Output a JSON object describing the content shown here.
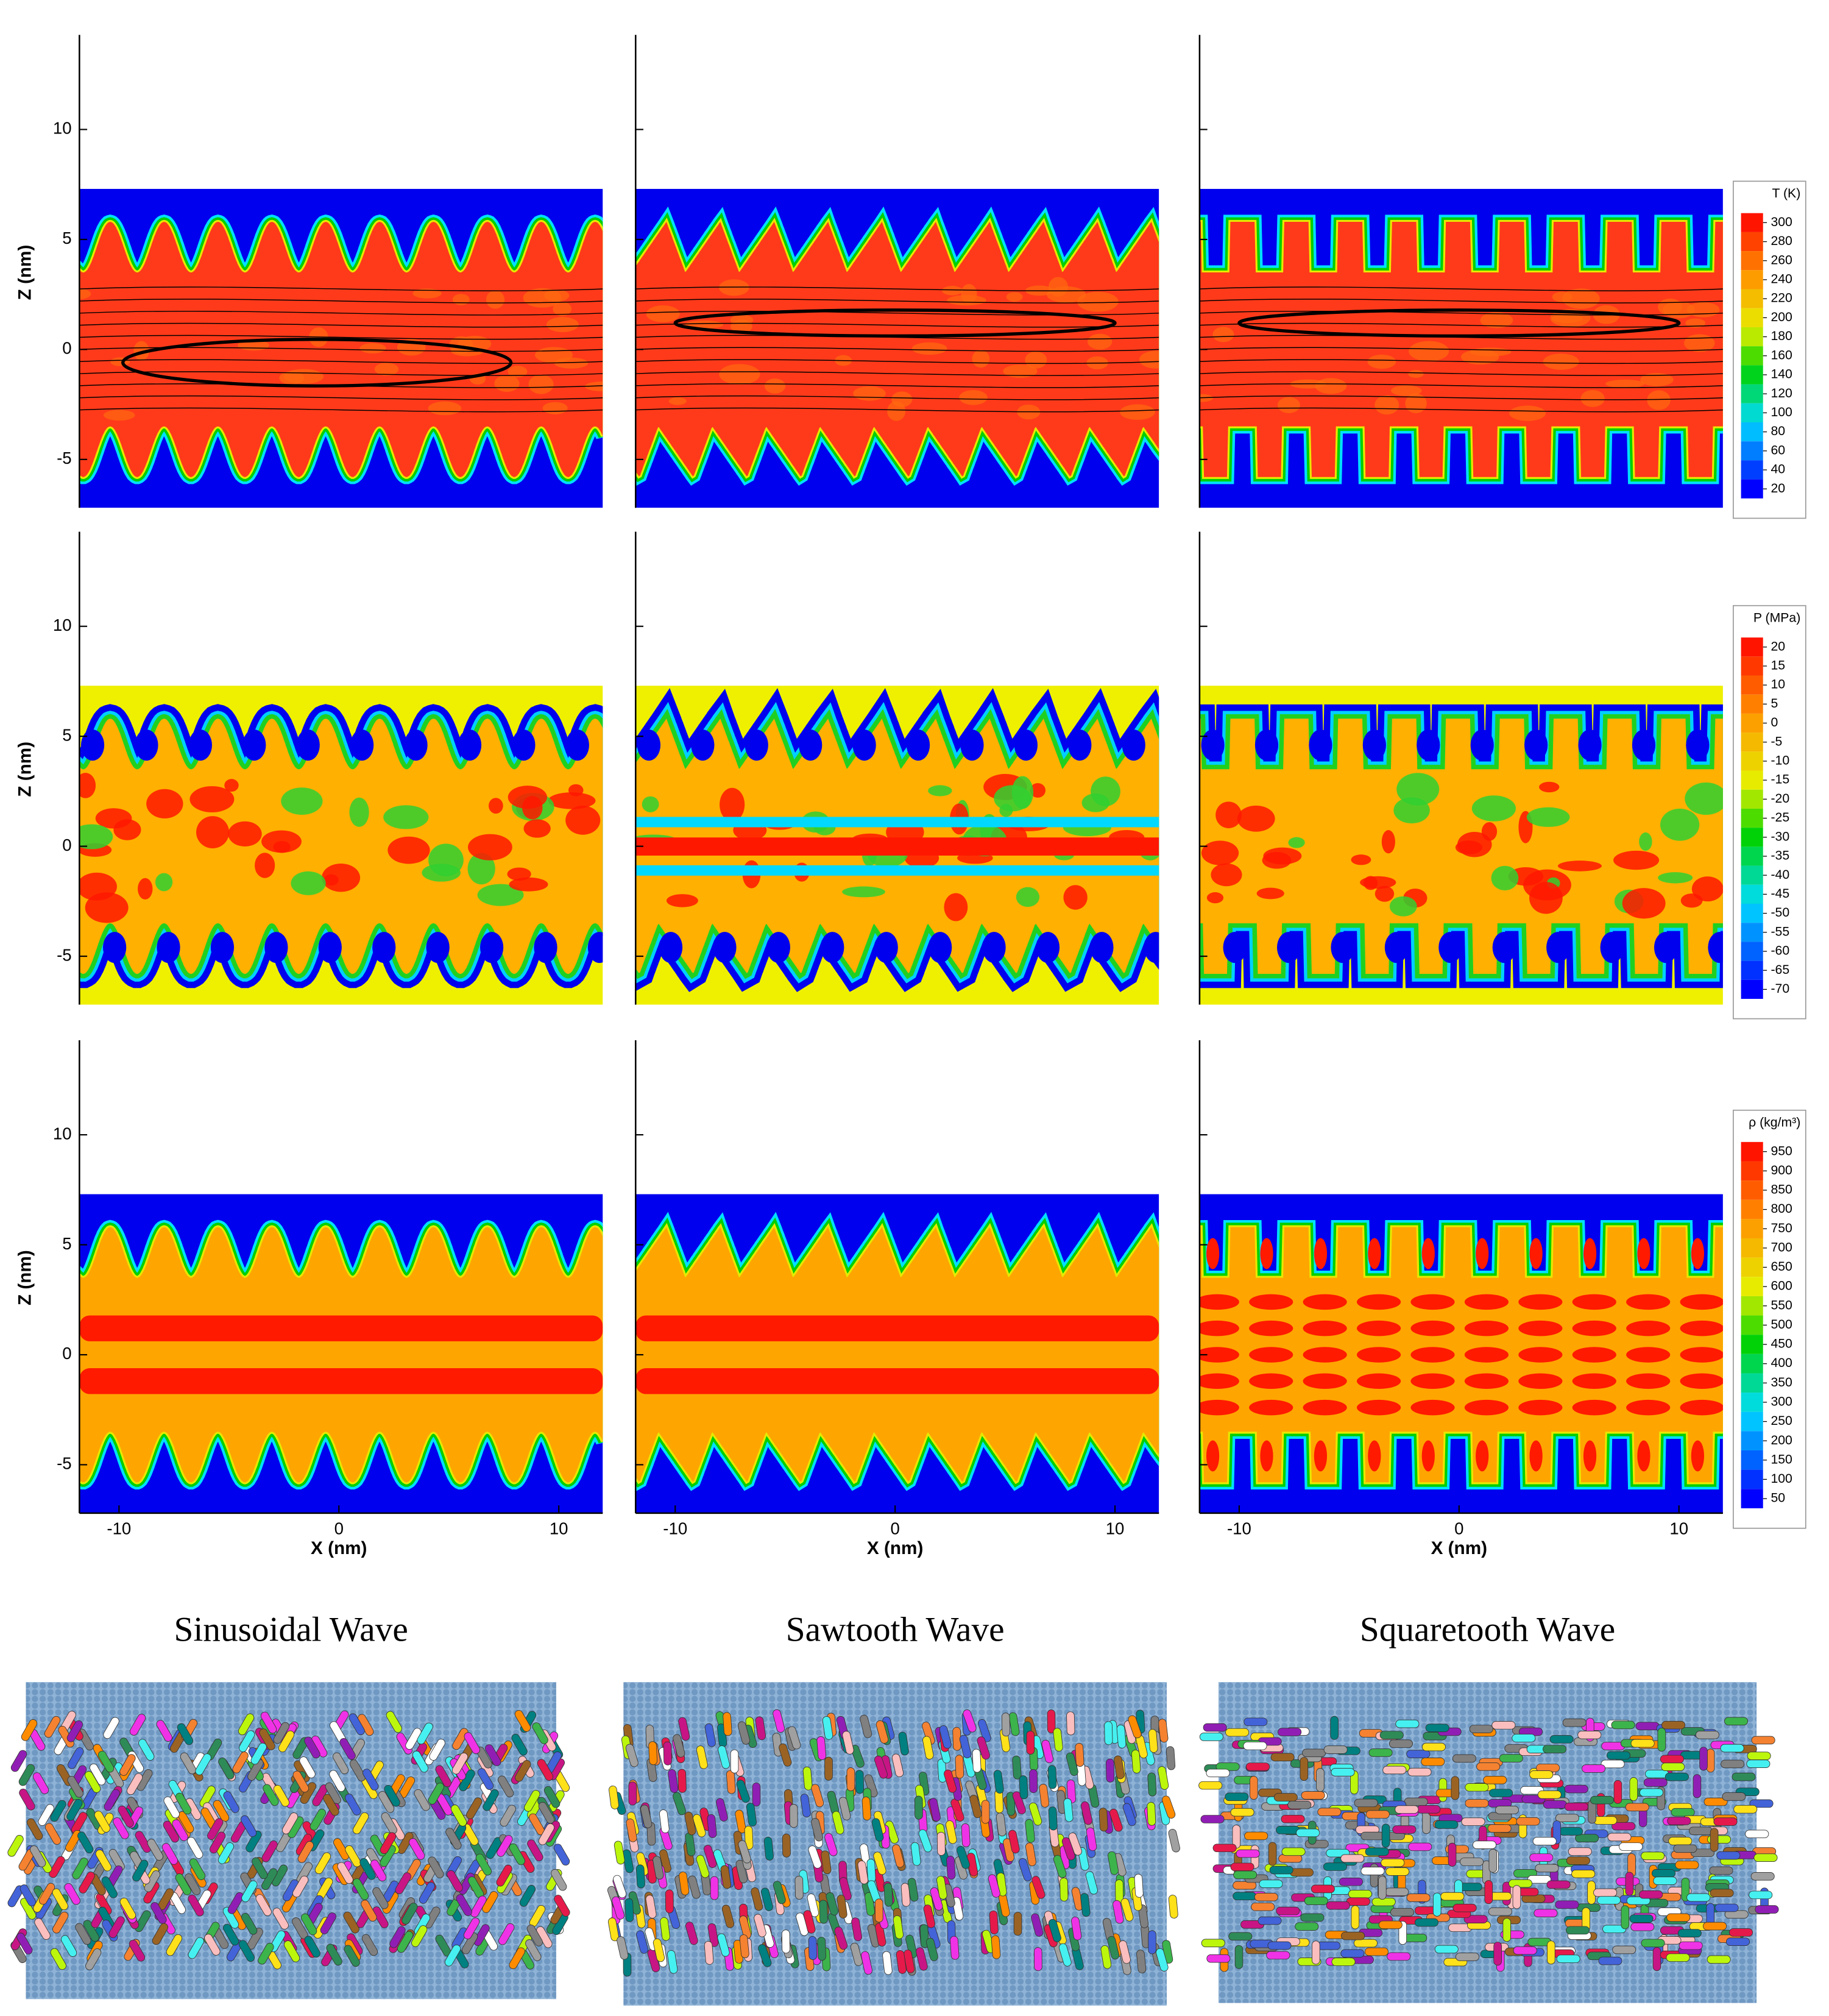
{
  "figure": {
    "xlabel": "X (nm)",
    "ylabel": "Z (nm)",
    "xlim": [
      -11.8,
      12
    ],
    "ylim": [
      -7.2,
      14.3
    ],
    "xticks": [
      -10,
      0,
      10
    ],
    "yticks": [
      -5,
      0,
      5,
      10
    ],
    "colorbars": [
      {
        "title": "T (K)",
        "ticks": [
          300,
          280,
          260,
          240,
          220,
          200,
          180,
          160,
          140,
          120,
          100,
          80,
          60,
          40,
          20
        ]
      },
      {
        "title": "P (MPa)",
        "ticks": [
          20,
          15,
          10,
          5,
          0,
          -5,
          -10,
          -15,
          -20,
          -25,
          -30,
          -35,
          -40,
          -45,
          -50,
          -55,
          -60,
          -65,
          -70
        ]
      },
      {
        "title": "ρ (kg/m³)",
        "ticks": [
          950,
          900,
          850,
          800,
          750,
          700,
          650,
          600,
          550,
          500,
          450,
          400,
          350,
          300,
          250,
          200,
          150,
          100,
          50
        ]
      }
    ],
    "columns": [
      "Sinusoidal Wave",
      "Sawtooth Wave",
      "Squaretooth Wave"
    ]
  }
}
